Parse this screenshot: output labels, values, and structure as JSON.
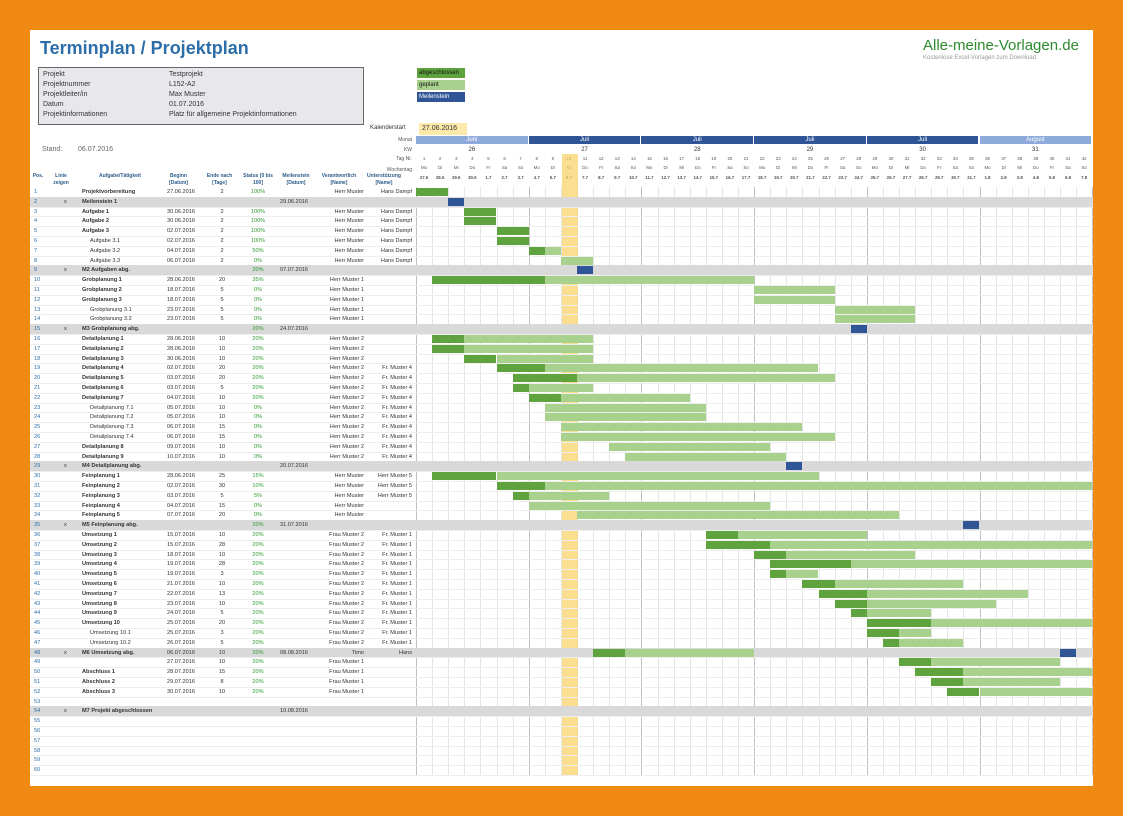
{
  "title": "Terminplan / Projektplan",
  "brand": {
    "name": "Alle-meine-Vorlagen.de",
    "tagline": "Kostenlose Excel-Vorlagen zum Download"
  },
  "info": [
    {
      "label": "Projekt",
      "value": "Testprojekt"
    },
    {
      "label": "Projektnummer",
      "value": "L152-A2"
    },
    {
      "label": "Projektleiter/in",
      "value": "Max Muster"
    },
    {
      "label": "Datum",
      "value": "01.07.2016"
    },
    {
      "label": "Projektinformationen",
      "value": "Platz für allgemeine Projektinformationen"
    }
  ],
  "stand": {
    "label": "Stand:",
    "value": "06.07.2016"
  },
  "legend": {
    "done": "abgeschlossen",
    "planned": "geplant",
    "milestone": "Meilenstein",
    "colors": {
      "done": "#5ea33d",
      "planned": "#a9d18e",
      "milestone": "#2f5597",
      "today": "#f9d36a"
    }
  },
  "kalender": {
    "label": "Kalenderstart",
    "value": "27.06.2016"
  },
  "row_labels": {
    "monat": "Monat",
    "kw": "KW",
    "tag": "Tag Nr.",
    "wochentag": "Wochentag"
  },
  "months": [
    "Juni",
    "Juli",
    "Juli",
    "Juli",
    "Juli",
    "August"
  ],
  "kws": [
    "26",
    "27",
    "28",
    "29",
    "30",
    "31"
  ],
  "days": [
    "27.6",
    "28.6",
    "29.6",
    "30.6",
    "1.7",
    "2.7",
    "3.7",
    "4.7",
    "5.7",
    "6.7",
    "7.7",
    "8.7",
    "9.7",
    "10.7",
    "11.7",
    "12.7",
    "13.7",
    "14.7",
    "15.7",
    "16.7",
    "17.7",
    "18.7",
    "19.7",
    "20.7",
    "21.7",
    "22.7",
    "23.7",
    "24.7",
    "25.7",
    "26.7",
    "27.7",
    "28.7",
    "29.7",
    "30.7",
    "31.7",
    "1.8",
    "2.8",
    "3.8",
    "4.8",
    "5.8",
    "6.8",
    "7.8"
  ],
  "weekdays": [
    "Mo",
    "Di",
    "Mi",
    "Do",
    "Fr",
    "Sa",
    "So"
  ],
  "headers": {
    "pos": "Pos.",
    "linie": "Linie zeigen",
    "task": "Aufgabe/Tätigkeit",
    "begin": "Beginn [Datum]",
    "end": "Ende nach [Tage]",
    "status": "Status [0 bis 100]",
    "ms": "Meilenstein [Datum]",
    "resp": "Verantwortlich [Name]",
    "support": "Unterstützung [Name]"
  },
  "tasks": [
    {
      "n": "1",
      "t": "Projektvorbereitung",
      "b": "27.06.2016",
      "d": "2",
      "s": "100%",
      "m": "",
      "r": "Herr Muster",
      "u": "Hans Dampf"
    },
    {
      "n": "2",
      "t": "Meilenstein 1",
      "b": "",
      "d": "",
      "s": "",
      "m": "29.06.2016",
      "r": "",
      "u": "",
      "x": "x"
    },
    {
      "n": "3",
      "t": "Aufgabe 1",
      "b": "30.06.2016",
      "d": "2",
      "s": "100%",
      "m": "",
      "r": "Herr Muster",
      "u": "Hans Dampf"
    },
    {
      "n": "4",
      "t": "Aufgabe 2",
      "b": "30.06.2016",
      "d": "2",
      "s": "100%",
      "m": "",
      "r": "Herr Muster",
      "u": "Hans Dampf"
    },
    {
      "n": "5",
      "t": "Aufgabe 3",
      "b": "02.07.2016",
      "d": "2",
      "s": "100%",
      "m": "",
      "r": "Herr Muster",
      "u": "Hans Dampf"
    },
    {
      "n": "6",
      "t": "Aufgabe 3.1",
      "b": "02.07.2016",
      "d": "2",
      "s": "100%",
      "m": "",
      "r": "Herr Muster",
      "u": "Hans Dampf"
    },
    {
      "n": "7",
      "t": "Aufgabe 3.2",
      "b": "04.07.2016",
      "d": "2",
      "s": "50%",
      "m": "",
      "r": "Herr Muster",
      "u": "Hans Dampf"
    },
    {
      "n": "8",
      "t": "Aufgabe 3.3",
      "b": "06.07.2016",
      "d": "2",
      "s": "0%",
      "m": "",
      "r": "Herr Muster",
      "u": "Hans Dampf"
    },
    {
      "n": "9",
      "t": "M2 Aufgaben abg.",
      "b": "",
      "d": "",
      "s": "20%",
      "m": "07.07.2016",
      "r": "",
      "u": "",
      "x": "x"
    },
    {
      "n": "10",
      "t": "Grobplanung 1",
      "b": "28.06.2016",
      "d": "20",
      "s": "35%",
      "m": "",
      "r": "Herr Muster 1",
      "u": ""
    },
    {
      "n": "11",
      "t": "Grobplanung 2",
      "b": "18.07.2016",
      "d": "5",
      "s": "0%",
      "m": "",
      "r": "Herr Muster 1",
      "u": ""
    },
    {
      "n": "12",
      "t": "Grobplanung 3",
      "b": "18.07.2016",
      "d": "5",
      "s": "0%",
      "m": "",
      "r": "Herr Muster 1",
      "u": ""
    },
    {
      "n": "13",
      "t": "Grobplanung 3.1",
      "b": "23.07.2016",
      "d": "5",
      "s": "0%",
      "m": "",
      "r": "Herr Muster 1",
      "u": ""
    },
    {
      "n": "14",
      "t": "Grobplanung 3.2",
      "b": "23.07.2016",
      "d": "5",
      "s": "0%",
      "m": "",
      "r": "Herr Muster 1",
      "u": ""
    },
    {
      "n": "15",
      "t": "M3 Grobplanung abg.",
      "b": "",
      "d": "",
      "s": "20%",
      "m": "24.07.2016",
      "r": "",
      "u": "",
      "x": "x"
    },
    {
      "n": "16",
      "t": "Detailplanung 1",
      "b": "28.06.2016",
      "d": "10",
      "s": "20%",
      "m": "",
      "r": "Herr Muster 2",
      "u": ""
    },
    {
      "n": "17",
      "t": "Detailplanung 2",
      "b": "28.06.2016",
      "d": "10",
      "s": "20%",
      "m": "",
      "r": "Herr Muster 2",
      "u": ""
    },
    {
      "n": "18",
      "t": "Detailplanung 3",
      "b": "30.06.2016",
      "d": "10",
      "s": "20%",
      "m": "",
      "r": "Herr Muster 2",
      "u": ""
    },
    {
      "n": "19",
      "t": "Detailplanung 4",
      "b": "02.07.2016",
      "d": "20",
      "s": "20%",
      "m": "",
      "r": "Herr Muster 2",
      "u": "Fr. Muster 4"
    },
    {
      "n": "20",
      "t": "Detailplanung 5",
      "b": "03.07.2016",
      "d": "20",
      "s": "20%",
      "m": "",
      "r": "Herr Muster 2",
      "u": "Fr. Muster 4"
    },
    {
      "n": "21",
      "t": "Detailplanung 6",
      "b": "03.07.2016",
      "d": "5",
      "s": "20%",
      "m": "",
      "r": "Herr Muster 2",
      "u": "Fr. Muster 4"
    },
    {
      "n": "22",
      "t": "Detailplanung 7",
      "b": "04.07.2016",
      "d": "10",
      "s": "20%",
      "m": "",
      "r": "Herr Muster 2",
      "u": "Fr. Muster 4"
    },
    {
      "n": "23",
      "t": "Detailplanung 7.1",
      "b": "05.07.2016",
      "d": "10",
      "s": "0%",
      "m": "",
      "r": "Herr Muster 2",
      "u": "Fr. Muster 4"
    },
    {
      "n": "24",
      "t": "Detailplanung 7.2",
      "b": "05.07.2016",
      "d": "10",
      "s": "0%",
      "m": "",
      "r": "Herr Muster 2",
      "u": "Fr. Muster 4"
    },
    {
      "n": "25",
      "t": "Detailplanung 7.3",
      "b": "06.07.2016",
      "d": "15",
      "s": "0%",
      "m": "",
      "r": "Herr Muster 2",
      "u": "Fr. Muster 4"
    },
    {
      "n": "26",
      "t": "Detailplanung 7.4",
      "b": "06.07.2016",
      "d": "15",
      "s": "0%",
      "m": "",
      "r": "Herr Muster 2",
      "u": "Fr. Muster 4"
    },
    {
      "n": "27",
      "t": "Detailplanung 8",
      "b": "09.07.2016",
      "d": "10",
      "s": "0%",
      "m": "",
      "r": "Herr Muster 2",
      "u": "Fr. Muster 4"
    },
    {
      "n": "28",
      "t": "Detailplanung 9",
      "b": "10.07.2016",
      "d": "10",
      "s": "0%",
      "m": "",
      "r": "Herr Muster 2",
      "u": "Fr. Muster 4"
    },
    {
      "n": "29",
      "t": "M4 Detailplanung abg.",
      "b": "",
      "d": "",
      "s": "",
      "m": "20.07.2016",
      "r": "",
      "u": "",
      "x": "x"
    },
    {
      "n": "30",
      "t": "Feinplanung 1",
      "b": "28.06.2016",
      "d": "25",
      "s": "15%",
      "m": "",
      "r": "Herr Muster",
      "u": "Herr Muster 5"
    },
    {
      "n": "31",
      "t": "Feinplanung 2",
      "b": "02.07.2016",
      "d": "30",
      "s": "10%",
      "m": "",
      "r": "Herr Muster",
      "u": "Herr Muster 5"
    },
    {
      "n": "32",
      "t": "Feinplanung 3",
      "b": "03.07.2016",
      "d": "5",
      "s": "5%",
      "m": "",
      "r": "Herr Muster",
      "u": "Herr Muster 5"
    },
    {
      "n": "33",
      "t": "Feinplanung 4",
      "b": "04.07.2016",
      "d": "15",
      "s": "0%",
      "m": "",
      "r": "Herr Muster",
      "u": ""
    },
    {
      "n": "34",
      "t": "Feinplanung 5",
      "b": "07.07.2016",
      "d": "20",
      "s": "0%",
      "m": "",
      "r": "Herr Muster",
      "u": ""
    },
    {
      "n": "35",
      "t": "M5 Feinplanung abg.",
      "b": "",
      "d": "",
      "s": "20%",
      "m": "31.07.2016",
      "r": "",
      "u": "",
      "x": "x"
    },
    {
      "n": "36",
      "t": "Umsetzung 1",
      "b": "15.07.2016",
      "d": "10",
      "s": "20%",
      "m": "",
      "r": "Frau Muster 2",
      "u": "Fr. Muster 1"
    },
    {
      "n": "37",
      "t": "Umsetzung 2",
      "b": "15.07.2016",
      "d": "28",
      "s": "20%",
      "m": "",
      "r": "Frau Muster 2",
      "u": "Fr. Muster 1"
    },
    {
      "n": "38",
      "t": "Umsetzung 3",
      "b": "18.07.2016",
      "d": "10",
      "s": "20%",
      "m": "",
      "r": "Frau Muster 2",
      "u": "Fr. Muster 1"
    },
    {
      "n": "39",
      "t": "Umsetzung 4",
      "b": "19.07.2016",
      "d": "28",
      "s": "20%",
      "m": "",
      "r": "Frau Muster 2",
      "u": "Fr. Muster 1"
    },
    {
      "n": "40",
      "t": "Umsetzung 5",
      "b": "19.07.2016",
      "d": "3",
      "s": "20%",
      "m": "",
      "r": "Frau Muster 2",
      "u": "Fr. Muster 1"
    },
    {
      "n": "41",
      "t": "Umsetzung 6",
      "b": "21.07.2016",
      "d": "10",
      "s": "20%",
      "m": "",
      "r": "Frau Muster 2",
      "u": "Fr. Muster 1"
    },
    {
      "n": "42",
      "t": "Umsetzung 7",
      "b": "22.07.2016",
      "d": "13",
      "s": "20%",
      "m": "",
      "r": "Frau Muster 2",
      "u": "Fr. Muster 1"
    },
    {
      "n": "43",
      "t": "Umsetzung 8",
      "b": "23.07.2016",
      "d": "10",
      "s": "20%",
      "m": "",
      "r": "Frau Muster 2",
      "u": "Fr. Muster 1"
    },
    {
      "n": "44",
      "t": "Umsetzung 9",
      "b": "24.07.2016",
      "d": "5",
      "s": "20%",
      "m": "",
      "r": "Frau Muster 2",
      "u": "Fr. Muster 1"
    },
    {
      "n": "45",
      "t": "Umsetzung 10",
      "b": "25.07.2016",
      "d": "20",
      "s": "20%",
      "m": "",
      "r": "Frau Muster 2",
      "u": "Fr. Muster 1"
    },
    {
      "n": "46",
      "t": "Umsetzung 10.1",
      "b": "25.07.2016",
      "d": "3",
      "s": "20%",
      "m": "",
      "r": "Frau Muster 2",
      "u": "Fr. Muster 1"
    },
    {
      "n": "47",
      "t": "Umsetzung 10.2",
      "b": "26.07.2016",
      "d": "5",
      "s": "20%",
      "m": "",
      "r": "Frau Muster 2",
      "u": "Fr. Muster 1"
    },
    {
      "n": "48",
      "t": "M6 Umsetzung abg.",
      "b": "06.07.2016",
      "d": "10",
      "s": "20%",
      "m": "08.08.2016",
      "r": "Timo",
      "u": "Hans",
      "x": "x"
    },
    {
      "n": "49",
      "t": "",
      "b": "27.07.2016",
      "d": "10",
      "s": "20%",
      "m": "",
      "r": "Frau Muster 1",
      "u": ""
    },
    {
      "n": "50",
      "t": "Abschluss 1",
      "b": "28.07.2016",
      "d": "15",
      "s": "20%",
      "m": "",
      "r": "Frau Muster 1",
      "u": ""
    },
    {
      "n": "51",
      "t": "Abschluss 2",
      "b": "29.07.2016",
      "d": "8",
      "s": "20%",
      "m": "",
      "r": "Frau Muster 1",
      "u": ""
    },
    {
      "n": "52",
      "t": "Abschluss 3",
      "b": "30.07.2016",
      "d": "10",
      "s": "20%",
      "m": "",
      "r": "Frau Muster 1",
      "u": ""
    },
    {
      "n": "53",
      "t": "",
      "b": "",
      "d": "",
      "s": "",
      "m": "",
      "r": "",
      "u": ""
    },
    {
      "n": "54",
      "t": "M7 Projekt abgeschlossen",
      "b": "",
      "d": "",
      "s": "",
      "m": "10.08.2016",
      "r": "",
      "u": "",
      "x": "x"
    },
    {
      "n": "55",
      "t": "",
      "b": "",
      "d": "",
      "s": "",
      "m": "",
      "r": "",
      "u": ""
    },
    {
      "n": "56",
      "t": "",
      "b": "",
      "d": "",
      "s": "",
      "m": "",
      "r": "",
      "u": ""
    },
    {
      "n": "57",
      "t": "",
      "b": "",
      "d": "",
      "s": "",
      "m": "",
      "r": "",
      "u": ""
    },
    {
      "n": "58",
      "t": "",
      "b": "",
      "d": "",
      "s": "",
      "m": "",
      "r": "",
      "u": ""
    },
    {
      "n": "59",
      "t": "",
      "b": "",
      "d": "",
      "s": "",
      "m": "",
      "r": "",
      "u": ""
    },
    {
      "n": "60",
      "t": "",
      "b": "",
      "d": "",
      "s": "",
      "m": "",
      "r": "",
      "u": ""
    }
  ]
}
